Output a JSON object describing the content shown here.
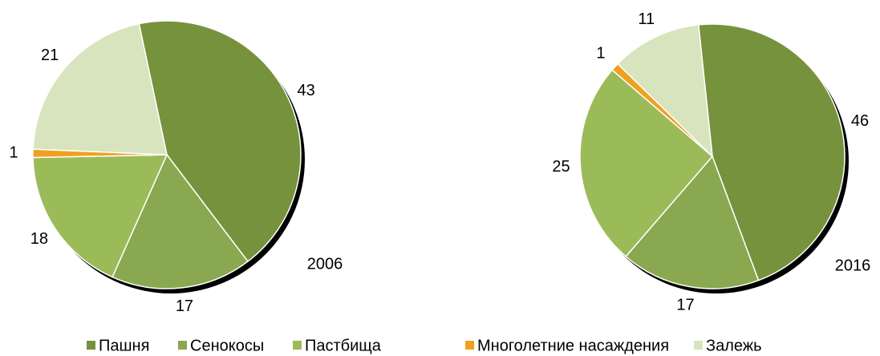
{
  "chart_data": [
    {
      "type": "pie",
      "title": "2006",
      "categories": [
        "Пашня",
        "Сенокосы",
        "Пастбища",
        "Многолетние насаждения",
        "Залежь"
      ],
      "values": [
        43,
        17,
        18,
        1,
        21
      ],
      "colors": [
        "#76923c",
        "#8aa84f",
        "#9bbb59",
        "#f0a020",
        "#d7e4bd"
      ]
    },
    {
      "type": "pie",
      "title": "2016",
      "categories": [
        "Пашня",
        "Сенокосы",
        "Пастбища",
        "Многолетние насаждения",
        "Залежь"
      ],
      "values": [
        46,
        17,
        25,
        1,
        11
      ],
      "colors": [
        "#76923c",
        "#8aa84f",
        "#9bbb59",
        "#f0a020",
        "#d7e4bd"
      ]
    }
  ]
}
